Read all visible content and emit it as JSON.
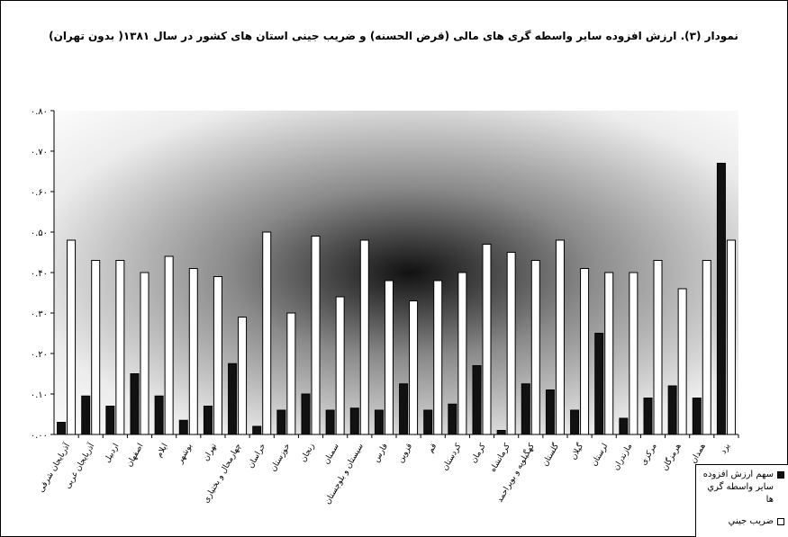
{
  "chart_data": {
    "type": "bar",
    "title": "نمودار (۳). ارزش افزوده سایر واسطه گری های مالی (قرض الحسنه) و ضریب جینی استان های کشور در سال ۱۳۸۱( بدون تهران)",
    "categories": [
      "آذربایجان شرقی",
      "آذربایجان غربی",
      "اردبیل",
      "اصفهان",
      "ایلام",
      "بوشهر",
      "تهران",
      "چهارمحال و بختیاری",
      "خراسان",
      "خوزستان",
      "زنجان",
      "سمنان",
      "سیستان و بلوچستان",
      "فارس",
      "قزوین",
      "قم",
      "کردستان",
      "کرمان",
      "کرمانشاه",
      "کهگیلویه و بویراحمد",
      "گلستان",
      "گیلان",
      "لرستان",
      "مازندران",
      "مرکزی",
      "هرمزگان",
      "همدان",
      "یزد"
    ],
    "series": [
      {
        "name": "سهم ارزش افزوده سایر واسطه گري ها",
        "color": "#111111",
        "values": [
          0.03,
          0.095,
          0.07,
          0.15,
          0.095,
          0.035,
          0.07,
          0.175,
          0.02,
          0.06,
          0.1,
          0.06,
          0.065,
          0.06,
          0.125,
          0.06,
          0.075,
          0.17,
          0.01,
          0.125,
          0.11,
          0.06,
          0.25,
          0.04,
          0.09,
          0.12,
          0.09,
          0.67
        ]
      },
      {
        "name": "ضريب جيني",
        "color": "#ffffff",
        "values": [
          0.48,
          0.43,
          0.43,
          0.4,
          0.44,
          0.41,
          0.39,
          0.29,
          0.5,
          0.3,
          0.49,
          0.34,
          0.48,
          0.38,
          0.33,
          0.38,
          0.4,
          0.47,
          0.45,
          0.43,
          0.48,
          0.41,
          0.4,
          0.4,
          0.43,
          0.36,
          0.43,
          0.48
        ]
      }
    ],
    "ylim": [
      0,
      0.8
    ],
    "yticks": [
      {
        "value": 0,
        "label": "۰.۰۰"
      },
      {
        "value": 0.1,
        "label": "۰.۱۰"
      },
      {
        "value": 0.2,
        "label": "۰.۲۰"
      },
      {
        "value": 0.3,
        "label": "۰.۳۰"
      },
      {
        "value": 0.4,
        "label": "۰.۴۰"
      },
      {
        "value": 0.5,
        "label": "۰.۵۰"
      },
      {
        "value": 0.6,
        "label": "۰.۶۰"
      },
      {
        "value": 0.7,
        "label": "۰.۷۰"
      },
      {
        "value": 0.8,
        "label": "۰.۸۰"
      }
    ],
    "grid": false
  }
}
